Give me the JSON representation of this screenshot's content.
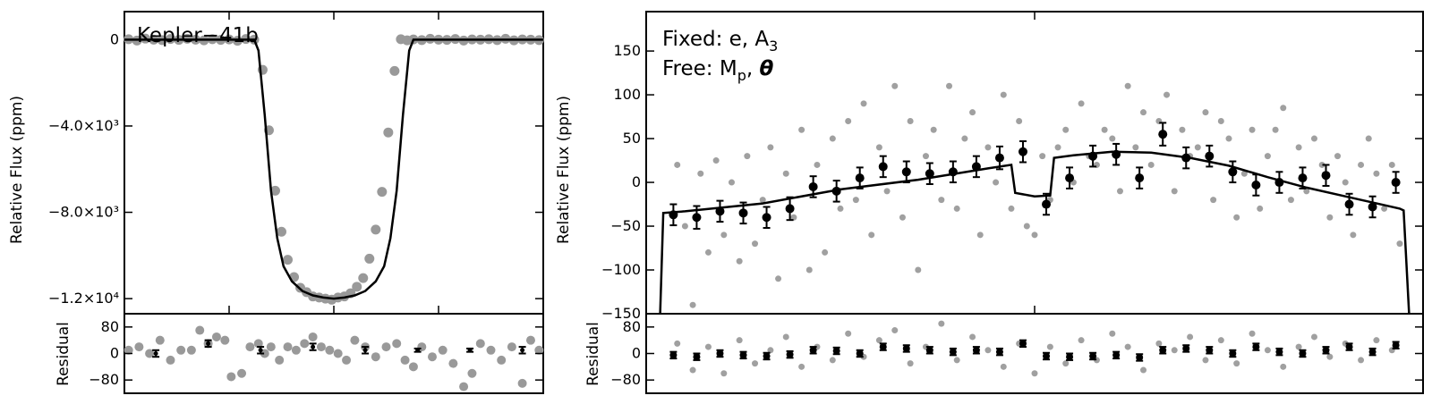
{
  "chart_data": [
    {
      "type": "scatter",
      "panel": "left-top",
      "annotation": "Kepler−41b",
      "ylabel": "Relative Flux (ppm)",
      "xlabel": "",
      "ylim": [
        -12700,
        1300
      ],
      "xlim": [
        -1,
        1
      ],
      "grid": false,
      "y_ticks": [
        0,
        -4000,
        -8000,
        -12000
      ],
      "y_tick_labels": [
        "0",
        "−4.0×10³",
        "−8.0×10³",
        "−1.2×10⁴"
      ],
      "x_ticks": [
        -0.5,
        0,
        0.5
      ],
      "model": {
        "x": [
          -1,
          -0.38,
          -0.36,
          -0.33,
          -0.3,
          -0.27,
          -0.24,
          -0.2,
          -0.15,
          -0.1,
          -0.05,
          0,
          0.05,
          0.1,
          0.15,
          0.2,
          0.24,
          0.27,
          0.3,
          0.33,
          0.36,
          0.38,
          1
        ],
        "y": [
          0,
          0,
          -500,
          -3500,
          -7000,
          -9200,
          -10500,
          -11200,
          -11650,
          -11850,
          -11950,
          -12000,
          -11950,
          -11850,
          -11650,
          -11200,
          -10500,
          -9200,
          -7000,
          -3500,
          -500,
          0,
          0
        ]
      },
      "points": {
        "x": [
          -0.98,
          -0.94,
          -0.9,
          -0.86,
          -0.82,
          -0.78,
          -0.74,
          -0.7,
          -0.66,
          -0.62,
          -0.58,
          -0.54,
          -0.5,
          -0.46,
          -0.42,
          -0.38,
          -0.34,
          -0.31,
          -0.28,
          -0.25,
          -0.22,
          -0.19,
          -0.16,
          -0.13,
          -0.1,
          -0.07,
          -0.04,
          -0.01,
          0.02,
          0.05,
          0.08,
          0.11,
          0.14,
          0.17,
          0.2,
          0.23,
          0.26,
          0.29,
          0.32,
          0.35,
          0.38,
          0.42,
          0.46,
          0.5,
          0.54,
          0.58,
          0.62,
          0.66,
          0.7,
          0.74,
          0.78,
          0.82,
          0.86,
          0.9,
          0.94,
          0.98
        ],
        "y": [
          20,
          -40,
          50,
          0,
          -20,
          30,
          -10,
          40,
          0,
          -30,
          20,
          -10,
          10,
          -50,
          30,
          0,
          -1400,
          -4200,
          -7000,
          -8900,
          -10200,
          -11000,
          -11500,
          -11700,
          -11900,
          -11950,
          -12000,
          -12050,
          -11950,
          -11900,
          -11750,
          -11450,
          -11050,
          -10150,
          -8800,
          -7050,
          -4300,
          -1450,
          20,
          -30,
          10,
          -20,
          40,
          0,
          -10,
          30,
          -40,
          10,
          0,
          20,
          -20,
          40,
          -30,
          10,
          0,
          -20
        ]
      }
    },
    {
      "type": "scatter",
      "panel": "left-bottom",
      "ylabel": "Residual",
      "ylim": [
        -120,
        120
      ],
      "xlim": [
        -1,
        1
      ],
      "y_ticks": [
        80,
        0,
        -80
      ],
      "y_tick_labels": [
        "80",
        "0",
        "−80"
      ],
      "points": {
        "x": [
          -0.98,
          -0.93,
          -0.88,
          -0.83,
          -0.78,
          -0.73,
          -0.68,
          -0.64,
          -0.6,
          -0.56,
          -0.52,
          -0.49,
          -0.44,
          -0.4,
          -0.36,
          -0.33,
          -0.3,
          -0.26,
          -0.22,
          -0.18,
          -0.14,
          -0.1,
          -0.06,
          -0.02,
          0.02,
          0.06,
          0.1,
          0.15,
          0.2,
          0.25,
          0.3,
          0.34,
          0.38,
          0.42,
          0.47,
          0.52,
          0.57,
          0.62,
          0.66,
          0.7,
          0.75,
          0.8,
          0.85,
          0.9,
          0.94,
          0.98
        ],
        "y": [
          10,
          20,
          0,
          40,
          -20,
          10,
          10,
          70,
          30,
          50,
          40,
          -70,
          -60,
          20,
          30,
          0,
          20,
          -20,
          20,
          10,
          30,
          50,
          20,
          10,
          0,
          -20,
          40,
          20,
          -10,
          20,
          30,
          -20,
          -40,
          20,
          -10,
          10,
          -30,
          -100,
          -60,
          30,
          10,
          -20,
          20,
          -90,
          40,
          10
        ]
      },
      "binned": {
        "x": [
          -0.85,
          -0.6,
          -0.35,
          -0.1,
          0.15,
          0.4,
          0.65,
          0.9
        ],
        "y": [
          0,
          30,
          10,
          20,
          10,
          10,
          10,
          10
        ],
        "err": [
          10,
          10,
          10,
          10,
          10,
          5,
          5,
          10
        ]
      }
    },
    {
      "type": "scatter",
      "panel": "right-top",
      "annotation_lines": [
        "Fixed: e, A₃",
        "Free: Mₚ, θ"
      ],
      "ylabel": "Relative Flux (ppm)",
      "xlabel": "",
      "ylim": [
        -150,
        195
      ],
      "xlim": [
        0,
        1
      ],
      "grid": false,
      "y_ticks": [
        150,
        100,
        50,
        0,
        -50,
        -100,
        -150
      ],
      "y_tick_labels": [
        "150",
        "100",
        "50",
        "0",
        "−50",
        "−100",
        "−150"
      ],
      "x_ticks": [
        0.5
      ],
      "model": {
        "x": [
          0.018,
          0.022,
          0.05,
          0.15,
          0.25,
          0.35,
          0.44,
          0.47,
          0.475,
          0.5,
          0.52,
          0.525,
          0.55,
          0.6,
          0.65,
          0.7,
          0.75,
          0.8,
          0.85,
          0.9,
          0.97,
          0.975,
          0.982
        ],
        "y": [
          -150,
          -35,
          -33,
          -24,
          -8,
          3,
          16,
          20,
          -12,
          -16,
          -15,
          28,
          31,
          35,
          34,
          28,
          19,
          6,
          -6,
          -16,
          -30,
          -32,
          -150
        ]
      },
      "binned": {
        "x": [
          0.035,
          0.065,
          0.095,
          0.125,
          0.155,
          0.185,
          0.215,
          0.245,
          0.275,
          0.305,
          0.335,
          0.365,
          0.395,
          0.425,
          0.455,
          0.485,
          0.515,
          0.545,
          0.575,
          0.605,
          0.635,
          0.665,
          0.695,
          0.725,
          0.755,
          0.785,
          0.815,
          0.845,
          0.875,
          0.905,
          0.935,
          0.965
        ],
        "y": [
          -37,
          -40,
          -33,
          -35,
          -40,
          -30,
          -5,
          -10,
          5,
          18,
          12,
          10,
          12,
          18,
          28,
          35,
          -25,
          5,
          30,
          32,
          5,
          55,
          28,
          30,
          12,
          -3,
          0,
          5,
          8,
          -25,
          -28,
          0
        ],
        "err": [
          12,
          13,
          12,
          12,
          12,
          13,
          12,
          12,
          12,
          12,
          12,
          12,
          12,
          12,
          13,
          12,
          12,
          12,
          12,
          12,
          12,
          13,
          12,
          12,
          12,
          12,
          12,
          12,
          12,
          12,
          12,
          12
        ]
      },
      "raw_points": {
        "x": [
          0.04,
          0.05,
          0.06,
          0.07,
          0.08,
          0.09,
          0.1,
          0.11,
          0.12,
          0.13,
          0.14,
          0.15,
          0.16,
          0.17,
          0.18,
          0.19,
          0.2,
          0.21,
          0.22,
          0.23,
          0.24,
          0.25,
          0.26,
          0.27,
          0.28,
          0.29,
          0.3,
          0.31,
          0.32,
          0.33,
          0.34,
          0.35,
          0.36,
          0.37,
          0.38,
          0.39,
          0.4,
          0.41,
          0.42,
          0.43,
          0.44,
          0.45,
          0.46,
          0.47,
          0.48,
          0.49,
          0.5,
          0.51,
          0.52,
          0.53,
          0.54,
          0.55,
          0.56,
          0.57,
          0.58,
          0.59,
          0.6,
          0.61,
          0.62,
          0.63,
          0.64,
          0.65,
          0.66,
          0.67,
          0.68,
          0.69,
          0.7,
          0.71,
          0.72,
          0.73,
          0.74,
          0.75,
          0.76,
          0.77,
          0.78,
          0.79,
          0.8,
          0.81,
          0.82,
          0.83,
          0.84,
          0.85,
          0.86,
          0.87,
          0.88,
          0.89,
          0.9,
          0.91,
          0.92,
          0.93,
          0.94,
          0.95,
          0.96,
          0.97
        ],
        "y": [
          20,
          -50,
          -140,
          10,
          -80,
          25,
          -60,
          0,
          -90,
          30,
          -70,
          -20,
          40,
          -110,
          10,
          -40,
          60,
          -100,
          20,
          -80,
          50,
          -30,
          70,
          -20,
          90,
          -60,
          40,
          -10,
          110,
          -40,
          70,
          -100,
          30,
          60,
          -20,
          110,
          -30,
          50,
          80,
          -60,
          40,
          0,
          100,
          -30,
          70,
          -50,
          -60,
          30,
          -20,
          40,
          60,
          0,
          90,
          30,
          20,
          60,
          50,
          -10,
          110,
          40,
          80,
          20,
          70,
          100,
          -10,
          60,
          30,
          40,
          80,
          -20,
          70,
          50,
          -40,
          10,
          60,
          -30,
          30,
          60,
          85,
          -20,
          40,
          -10,
          50,
          20,
          -40,
          30,
          0,
          -60,
          20,
          50,
          10,
          -30,
          20,
          -70
        ]
      }
    },
    {
      "type": "scatter",
      "panel": "right-bottom",
      "ylabel": "Residual",
      "ylim": [
        -120,
        120
      ],
      "xlim": [
        0,
        1
      ],
      "y_ticks": [
        80,
        0,
        -80
      ],
      "y_tick_labels": [
        "80",
        "0",
        "−80"
      ],
      "binned": {
        "x": [
          0.035,
          0.065,
          0.095,
          0.125,
          0.155,
          0.185,
          0.215,
          0.245,
          0.275,
          0.305,
          0.335,
          0.365,
          0.395,
          0.425,
          0.455,
          0.485,
          0.515,
          0.545,
          0.575,
          0.605,
          0.635,
          0.665,
          0.695,
          0.725,
          0.755,
          0.785,
          0.815,
          0.845,
          0.875,
          0.905,
          0.935,
          0.965
        ],
        "y": [
          -5,
          -10,
          0,
          -5,
          -8,
          -3,
          10,
          8,
          0,
          20,
          15,
          10,
          5,
          10,
          5,
          30,
          -8,
          -10,
          -8,
          -5,
          -12,
          10,
          15,
          10,
          0,
          20,
          5,
          0,
          10,
          20,
          5,
          25
        ],
        "err": [
          10,
          10,
          10,
          10,
          10,
          10,
          10,
          10,
          10,
          10,
          10,
          10,
          10,
          10,
          10,
          10,
          10,
          10,
          10,
          10,
          10,
          10,
          10,
          10,
          10,
          10,
          10,
          10,
          10,
          10,
          10,
          10
        ]
      },
      "raw_points": {
        "x": [
          0.04,
          0.06,
          0.08,
          0.1,
          0.12,
          0.14,
          0.16,
          0.18,
          0.2,
          0.22,
          0.24,
          0.26,
          0.28,
          0.3,
          0.32,
          0.34,
          0.36,
          0.38,
          0.4,
          0.42,
          0.44,
          0.46,
          0.48,
          0.5,
          0.52,
          0.54,
          0.56,
          0.58,
          0.6,
          0.62,
          0.64,
          0.66,
          0.68,
          0.7,
          0.72,
          0.74,
          0.76,
          0.78,
          0.8,
          0.82,
          0.84,
          0.86,
          0.88,
          0.9,
          0.92,
          0.94,
          0.96
        ],
        "y": [
          30,
          -50,
          20,
          -60,
          40,
          -30,
          10,
          50,
          -40,
          20,
          -20,
          60,
          -10,
          40,
          70,
          -30,
          20,
          90,
          -20,
          50,
          10,
          -40,
          30,
          -60,
          20,
          -30,
          40,
          -20,
          60,
          20,
          -50,
          30,
          10,
          50,
          -20,
          40,
          -30,
          60,
          10,
          -40,
          20,
          50,
          -10,
          30,
          -20,
          40,
          10
        ]
      }
    }
  ]
}
